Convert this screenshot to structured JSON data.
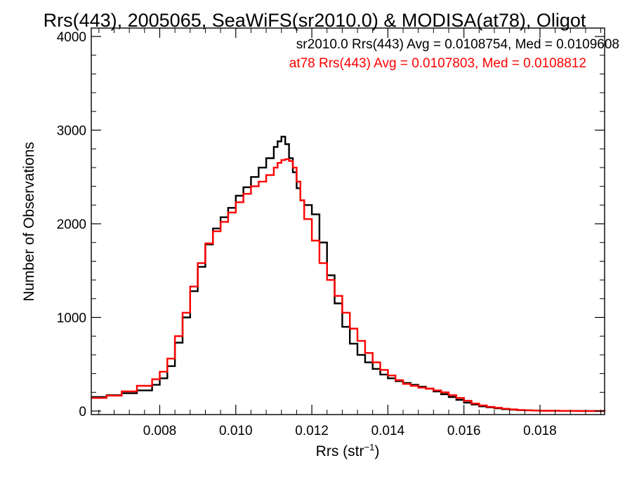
{
  "chart_data": {
    "type": "line",
    "title": "Rrs(443), 2005065, SeaWiFS(sr2010.0) & MODISA(at78), Oligot",
    "xlabel": "Rrs (str",
    "xlabel_sup": "−1",
    "xlabel_close": ")",
    "ylabel": "Number of Observations",
    "xlim": [
      0.0062,
      0.0197
    ],
    "ylim": [
      0,
      4000
    ],
    "xticks": [
      0.008,
      0.01,
      0.012,
      0.014,
      0.016,
      0.018
    ],
    "xtick_labels": [
      "0.008",
      "0.010",
      "0.012",
      "0.014",
      "0.016",
      "0.018"
    ],
    "yticks": [
      0,
      1000,
      2000,
      3000,
      4000
    ],
    "ytick_labels": [
      "0",
      "1000",
      "2000",
      "3000",
      "4000"
    ],
    "grid": false,
    "series": [
      {
        "name": "sr2010.0",
        "color": "#000000",
        "annotation": "sr2010.0 Rrs(443) Avg = 0.0108754, Med = 0.0109608",
        "x": [
          0.0062,
          0.0066,
          0.007,
          0.0074,
          0.0078,
          0.008,
          0.0082,
          0.0084,
          0.0086,
          0.0088,
          0.009,
          0.0092,
          0.0094,
          0.0096,
          0.0098,
          0.01,
          0.0102,
          0.0104,
          0.0106,
          0.0108,
          0.011,
          0.0111,
          0.0112,
          0.0113,
          0.0114,
          0.0115,
          0.0116,
          0.0117,
          0.0118,
          0.012,
          0.0122,
          0.0124,
          0.0126,
          0.0128,
          0.013,
          0.0132,
          0.0134,
          0.0136,
          0.0138,
          0.014,
          0.0142,
          0.0144,
          0.0146,
          0.0148,
          0.015,
          0.0152,
          0.0154,
          0.0156,
          0.0158,
          0.016,
          0.0162,
          0.0164,
          0.0166,
          0.0168,
          0.017,
          0.0172,
          0.0174,
          0.0176,
          0.0178,
          0.018,
          0.0185,
          0.019,
          0.0197
        ],
        "y": [
          150,
          170,
          190,
          220,
          280,
          350,
          480,
          730,
          1000,
          1280,
          1540,
          1780,
          1950,
          2070,
          2170,
          2300,
          2390,
          2500,
          2600,
          2700,
          2820,
          2880,
          2930,
          2850,
          2700,
          2550,
          2380,
          2250,
          2200,
          2100,
          1800,
          1450,
          1150,
          900,
          720,
          600,
          520,
          450,
          390,
          350,
          320,
          300,
          280,
          260,
          240,
          210,
          180,
          150,
          120,
          90,
          70,
          50,
          40,
          30,
          20,
          15,
          10,
          8,
          5,
          3,
          2,
          1,
          0
        ]
      },
      {
        "name": "at78",
        "color": "#ff0000",
        "annotation": "at78 Rrs(443) Avg = 0.0107803, Med = 0.0108812",
        "x": [
          0.0062,
          0.0066,
          0.007,
          0.0074,
          0.0078,
          0.008,
          0.0082,
          0.0084,
          0.0086,
          0.0088,
          0.009,
          0.0092,
          0.0094,
          0.0096,
          0.0098,
          0.01,
          0.0102,
          0.0104,
          0.0106,
          0.0108,
          0.011,
          0.0111,
          0.0112,
          0.0113,
          0.0114,
          0.0115,
          0.0116,
          0.0117,
          0.0118,
          0.012,
          0.0122,
          0.0124,
          0.0126,
          0.0128,
          0.013,
          0.0132,
          0.0134,
          0.0136,
          0.0138,
          0.014,
          0.0142,
          0.0144,
          0.0146,
          0.0148,
          0.015,
          0.0152,
          0.0154,
          0.0156,
          0.0158,
          0.016,
          0.0162,
          0.0164,
          0.0166,
          0.0168,
          0.017,
          0.0172,
          0.0174,
          0.0176,
          0.0178,
          0.018,
          0.0185,
          0.019,
          0.0197
        ],
        "y": [
          140,
          165,
          210,
          270,
          340,
          420,
          560,
          800,
          1050,
          1330,
          1580,
          1790,
          1920,
          2020,
          2120,
          2230,
          2320,
          2400,
          2450,
          2520,
          2600,
          2650,
          2680,
          2690,
          2670,
          2600,
          2450,
          2250,
          2050,
          1820,
          1580,
          1400,
          1230,
          1050,
          880,
          750,
          620,
          520,
          440,
          380,
          330,
          290,
          270,
          250,
          240,
          220,
          200,
          170,
          140,
          110,
          80,
          60,
          45,
          35,
          25,
          18,
          12,
          8,
          5,
          3,
          2,
          1,
          0
        ]
      }
    ]
  }
}
